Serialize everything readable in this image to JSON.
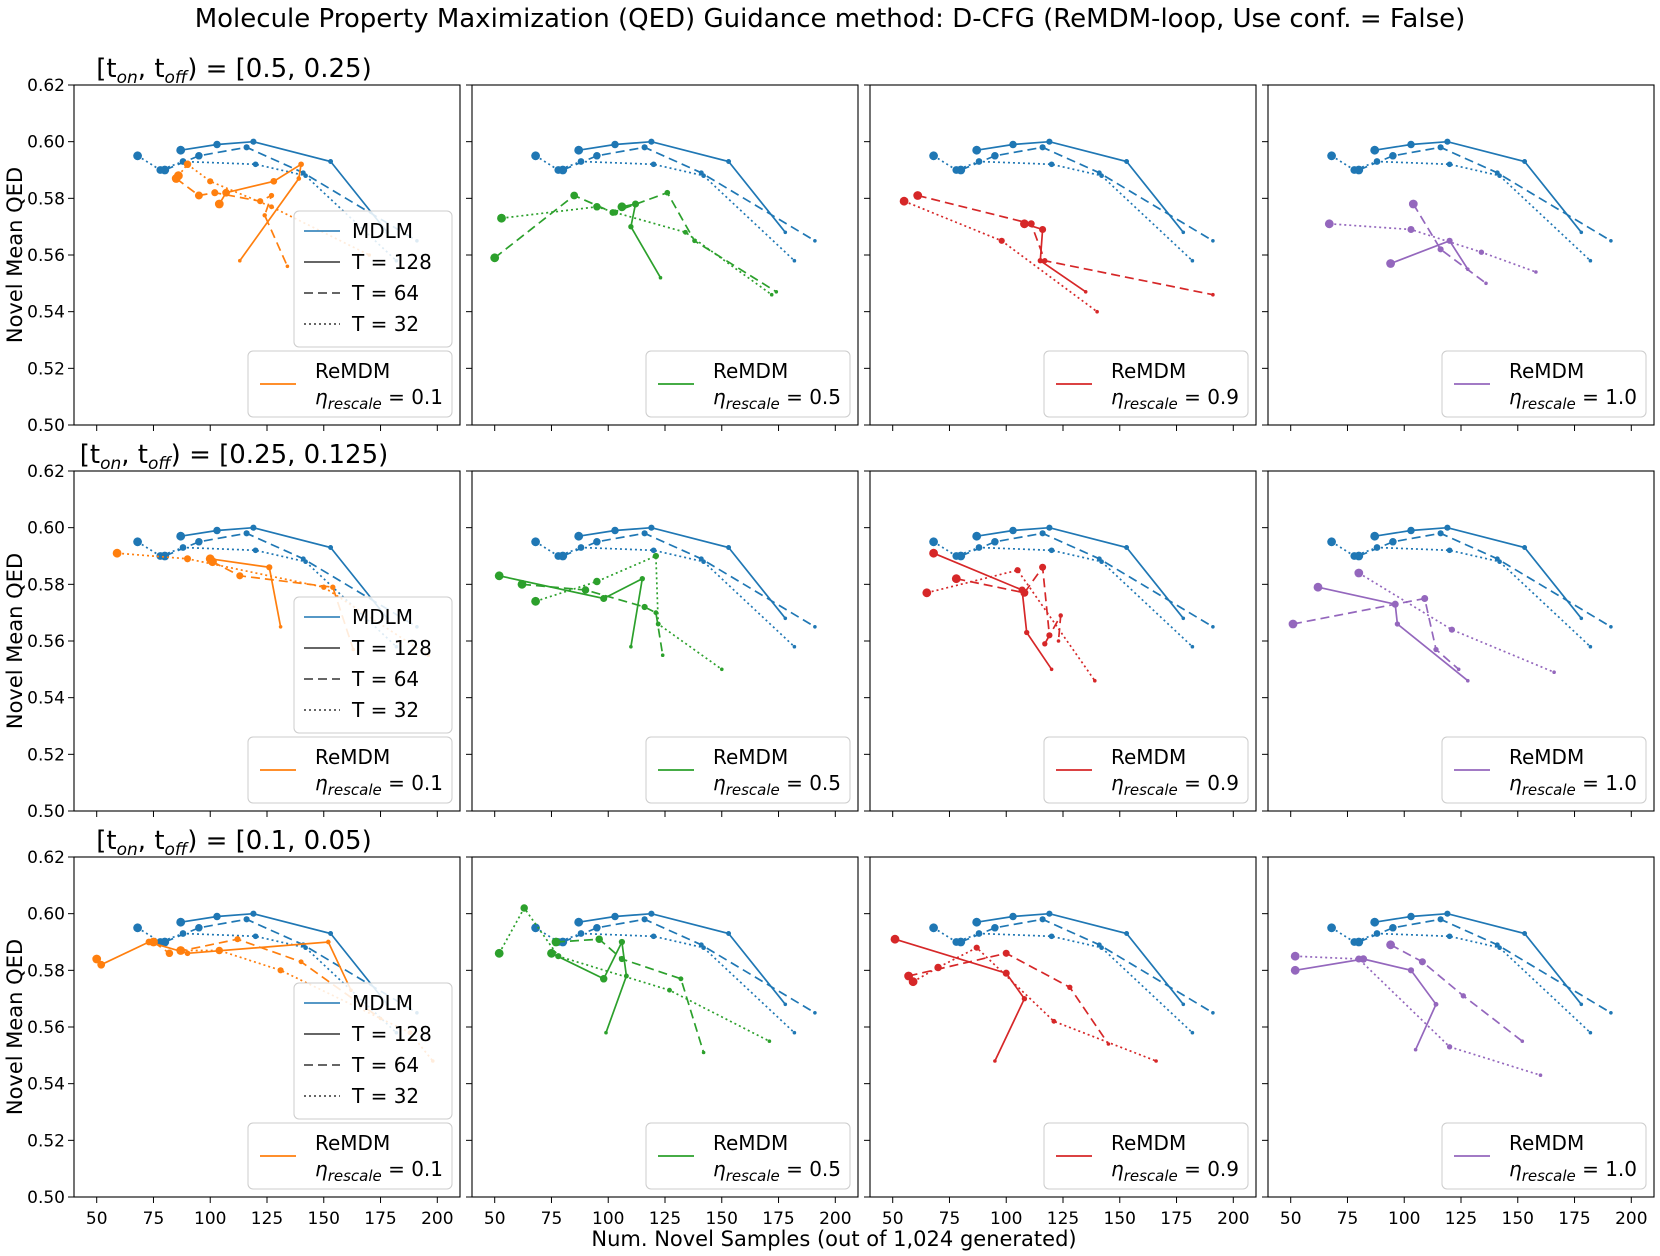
{
  "title": "Molecule Property Maximization (QED) Guidance method: D-CFG (ReMDM-loop, Use conf. = False)",
  "xlabel": "Num. Novel Samples (out of 1,024 generated)",
  "ylabel": "Novel Mean QED",
  "xticks": [
    50,
    75,
    100,
    125,
    150,
    175,
    200
  ],
  "yticks": [
    "0.50",
    "0.52",
    "0.54",
    "0.56",
    "0.58",
    "0.60",
    "0.62"
  ],
  "xlim": [
    40,
    210
  ],
  "ylim": [
    0.5,
    0.62
  ],
  "row_titles": [
    {
      "main": "[t",
      "sub1": "on",
      "mid": ", t",
      "sub2": "off",
      "end": ") = [0.5, 0.25)"
    },
    {
      "main": "[t",
      "sub1": "on",
      "mid": ", t",
      "sub2": "off",
      "end": ") = [0.25, 0.125)"
    },
    {
      "main": "[t",
      "sub1": "on",
      "mid": ", t",
      "sub2": "off",
      "end": ") = [0.1, 0.05)"
    }
  ],
  "legend_mdlm": {
    "mdlm": "MDLM",
    "t128": "T = 128",
    "t64": "T = 64",
    "t32": "T = 32"
  },
  "legend_remdm": {
    "name": "ReMDM",
    "eta_symbol": "η",
    "eta_sub": "rescale"
  },
  "colors": {
    "MDLM": "#1f77b4",
    "0.1": "#ff7f0e",
    "0.5": "#2ca02c",
    "0.9": "#d62728",
    "1.0": "#9467bd"
  },
  "chart_data": {
    "type": "line",
    "etas": [
      "0.1",
      "0.5",
      "0.9",
      "1.0"
    ],
    "mdlm": {
      "T128": [
        [
          87,
          0.597
        ],
        [
          103,
          0.599
        ],
        [
          119,
          0.6
        ],
        [
          153,
          0.593
        ],
        [
          178,
          0.568
        ]
      ],
      "T64": [
        [
          80,
          0.59
        ],
        [
          95,
          0.595
        ],
        [
          116,
          0.598
        ],
        [
          141,
          0.589
        ],
        [
          191,
          0.565
        ]
      ],
      "T32": [
        [
          68,
          0.595
        ],
        [
          78,
          0.59
        ],
        [
          88,
          0.593
        ],
        [
          120,
          0.592
        ],
        [
          142,
          0.588
        ],
        [
          182,
          0.558
        ]
      ]
    },
    "remdm": [
      [
        {
          "T128": [
            [
              104,
              0.578
            ],
            [
              107,
              0.582
            ],
            [
              128,
              0.586
            ],
            [
              140,
              0.592
            ],
            [
              139,
              0.587
            ],
            [
              113,
              0.558
            ]
          ],
          "T64": [
            [
              85,
              0.587
            ],
            [
              95,
              0.581
            ],
            [
              102,
              0.582
            ],
            [
              122,
              0.579
            ],
            [
              127,
              0.581
            ],
            [
              124,
              0.574
            ],
            [
              134,
              0.556
            ]
          ],
          "T32": [
            [
              86,
              0.588
            ],
            [
              90,
              0.592
            ],
            [
              100,
              0.586
            ],
            [
              127,
              0.577
            ],
            [
              170,
              0.56
            ]
          ]
        },
        {
          "T128": [
            [
              106,
              0.577
            ],
            [
              112,
              0.578
            ],
            [
              110,
              0.57
            ],
            [
              123,
              0.552
            ]
          ],
          "T64": [
            [
              50,
              0.559
            ],
            [
              85,
              0.581
            ],
            [
              102,
              0.575
            ],
            [
              126,
              0.582
            ],
            [
              138,
              0.565
            ],
            [
              174,
              0.547
            ]
          ],
          "T32": [
            [
              53,
              0.573
            ],
            [
              95,
              0.577
            ],
            [
              103,
              0.575
            ],
            [
              134,
              0.568
            ],
            [
              172,
              0.546
            ]
          ]
        },
        {
          "T128": [
            [
              108,
              0.571
            ],
            [
              116,
              0.569
            ],
            [
              115,
              0.558
            ],
            [
              135,
              0.547
            ]
          ],
          "T64": [
            [
              61,
              0.581
            ],
            [
              111,
              0.571
            ],
            [
              117,
              0.558
            ],
            [
              191,
              0.546
            ]
          ],
          "T32": [
            [
              55,
              0.579
            ],
            [
              98,
              0.565
            ],
            [
              140,
              0.54
            ]
          ]
        },
        {
          "T128": [
            [
              94,
              0.557
            ],
            [
              120,
              0.565
            ],
            [
              128,
              0.555
            ]
          ],
          "T64": [
            [
              104,
              0.578
            ],
            [
              116,
              0.562
            ],
            [
              136,
              0.55
            ]
          ],
          "T32": [
            [
              67,
              0.571
            ],
            [
              103,
              0.569
            ],
            [
              134,
              0.561
            ],
            [
              158,
              0.554
            ]
          ]
        }
      ],
      [
        {
          "T128": [
            [
              100,
              0.589
            ],
            [
              126,
              0.586
            ],
            [
              131,
              0.565
            ]
          ],
          "T64": [
            [
              101,
              0.588
            ],
            [
              113,
              0.583
            ],
            [
              154,
              0.579
            ],
            [
              163,
              0.557
            ]
          ],
          "T32": [
            [
              59,
              0.591
            ],
            [
              90,
              0.589
            ],
            [
              150,
              0.579
            ],
            [
              196,
              0.555
            ]
          ]
        },
        {
          "T128": [
            [
              52,
              0.583
            ],
            [
              98,
              0.575
            ],
            [
              115,
              0.582
            ],
            [
              110,
              0.558
            ]
          ],
          "T64": [
            [
              62,
              0.58
            ],
            [
              90,
              0.578
            ],
            [
              116,
              0.572
            ],
            [
              121,
              0.57
            ],
            [
              124,
              0.555
            ]
          ],
          "T32": [
            [
              68,
              0.574
            ],
            [
              95,
              0.581
            ],
            [
              121,
              0.59
            ],
            [
              122,
              0.566
            ],
            [
              150,
              0.55
            ]
          ]
        },
        {
          "T128": [
            [
              68,
              0.591
            ],
            [
              107,
              0.578
            ],
            [
              109,
              0.563
            ],
            [
              120,
              0.55
            ]
          ],
          "T64": [
            [
              78,
              0.582
            ],
            [
              108,
              0.577
            ],
            [
              116,
              0.586
            ],
            [
              119,
              0.562
            ],
            [
              117,
              0.559
            ],
            [
              124,
              0.569
            ],
            [
              123,
              0.56
            ]
          ],
          "T32": [
            [
              65,
              0.577
            ],
            [
              105,
              0.585
            ],
            [
              139,
              0.546
            ]
          ]
        },
        {
          "T128": [
            [
              62,
              0.579
            ],
            [
              96,
              0.573
            ],
            [
              97,
              0.566
            ],
            [
              128,
              0.546
            ]
          ],
          "T64": [
            [
              51,
              0.566
            ],
            [
              109,
              0.575
            ],
            [
              114,
              0.557
            ],
            [
              124,
              0.55
            ]
          ],
          "T32": [
            [
              80,
              0.584
            ],
            [
              121,
              0.564
            ],
            [
              166,
              0.549
            ]
          ]
        }
      ],
      [
        {
          "T128": [
            [
              50,
              0.584
            ],
            [
              52,
              0.582
            ],
            [
              73,
              0.59
            ],
            [
              90,
              0.586
            ],
            [
              152,
              0.59
            ],
            [
              162,
              0.573
            ]
          ],
          "T64": [
            [
              75,
              0.59
            ],
            [
              82,
              0.586
            ],
            [
              112,
              0.591
            ],
            [
              140,
              0.583
            ],
            [
              175,
              0.563
            ]
          ],
          "T32": [
            [
              87,
              0.587
            ],
            [
              104,
              0.587
            ],
            [
              131,
              0.58
            ],
            [
              188,
              0.558
            ],
            [
              198,
              0.548
            ]
          ]
        },
        {
          "T128": [
            [
              75,
              0.586
            ],
            [
              98,
              0.577
            ],
            [
              106,
              0.59
            ],
            [
              108,
              0.578
            ],
            [
              99,
              0.558
            ]
          ],
          "T64": [
            [
              77,
              0.59
            ],
            [
              96,
              0.591
            ],
            [
              106,
              0.584
            ],
            [
              132,
              0.577
            ],
            [
              142,
              0.551
            ]
          ],
          "T32": [
            [
              52,
              0.586
            ],
            [
              63,
              0.602
            ],
            [
              78,
              0.585
            ],
            [
              127,
              0.573
            ],
            [
              171,
              0.555
            ]
          ]
        },
        {
          "T128": [
            [
              51,
              0.591
            ],
            [
              100,
              0.579
            ],
            [
              108,
              0.57
            ],
            [
              95,
              0.548
            ]
          ],
          "T64": [
            [
              57,
              0.578
            ],
            [
              100,
              0.586
            ],
            [
              128,
              0.574
            ],
            [
              145,
              0.554
            ]
          ],
          "T32": [
            [
              59,
              0.576
            ],
            [
              70,
              0.581
            ],
            [
              87,
              0.588
            ],
            [
              121,
              0.562
            ],
            [
              166,
              0.548
            ]
          ]
        },
        {
          "T128": [
            [
              52,
              0.58
            ],
            [
              82,
              0.584
            ],
            [
              103,
              0.58
            ],
            [
              114,
              0.568
            ],
            [
              105,
              0.552
            ]
          ],
          "T64": [
            [
              94,
              0.589
            ],
            [
              108,
              0.583
            ],
            [
              126,
              0.571
            ],
            [
              152,
              0.555
            ]
          ],
          "T32": [
            [
              52,
              0.585
            ],
            [
              80,
              0.584
            ],
            [
              120,
              0.553
            ],
            [
              160,
              0.543
            ]
          ]
        }
      ]
    ]
  }
}
